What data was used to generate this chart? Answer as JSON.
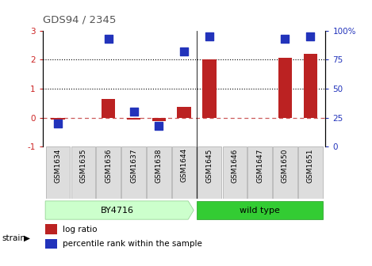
{
  "title": "GDS94 / 2345",
  "samples": [
    "GSM1634",
    "GSM1635",
    "GSM1636",
    "GSM1637",
    "GSM1638",
    "GSM1644",
    "GSM1645",
    "GSM1646",
    "GSM1647",
    "GSM1650",
    "GSM1651"
  ],
  "log_ratio": [
    -0.08,
    0.0,
    0.65,
    -0.07,
    -0.12,
    0.38,
    2.02,
    0.0,
    0.0,
    2.07,
    2.2
  ],
  "percentile_rank": [
    20,
    0,
    93,
    30,
    18,
    82,
    95,
    0,
    0,
    93,
    95
  ],
  "ylim": [
    -1,
    3
  ],
  "y2lim": [
    0,
    100
  ],
  "y_ticks": [
    -1,
    0,
    1,
    2,
    3
  ],
  "y2_ticks": [
    0,
    25,
    50,
    75,
    100
  ],
  "dotted_lines": [
    1,
    2
  ],
  "dashed_line_y": 0,
  "bar_color": "#bb2222",
  "dot_color": "#2233bb",
  "bar_width": 0.55,
  "dot_size": 45,
  "by_color_light": "#ccffcc",
  "by_color_dark": "#44dd44",
  "wt_color": "#33cc33",
  "title_color": "#555555",
  "left_tick_color": "#cc2222",
  "right_tick_color": "#2233bb",
  "sep_col_index": 5.5
}
